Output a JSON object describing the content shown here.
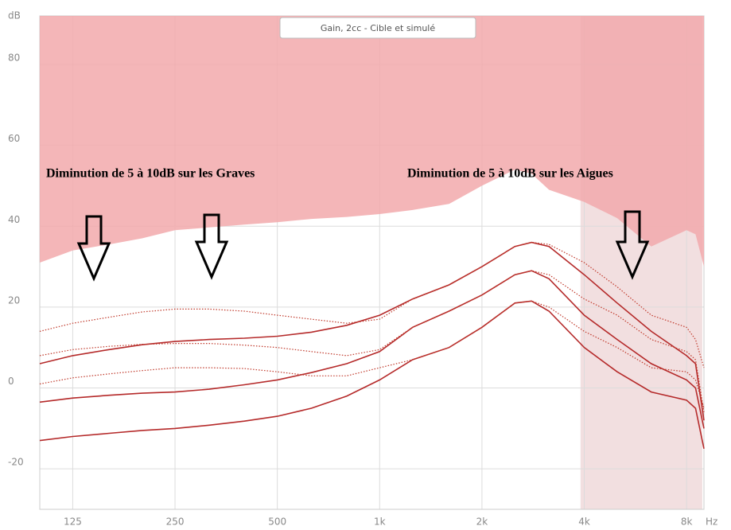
{
  "chart_data": {
    "type": "line",
    "title": "Gain, 2cc - Cible et simulé",
    "y_unit": "dB",
    "x_unit": "Hz",
    "xscale": "log",
    "xlim": [
      100,
      9000
    ],
    "ylim": [
      -30,
      92
    ],
    "xticks": [
      125,
      250,
      500,
      {
        "value": 1000,
        "label": "1k"
      },
      {
        "value": 2000,
        "label": "2k"
      },
      {
        "value": 4000,
        "label": "4k"
      },
      {
        "value": 8000,
        "label": "8k"
      }
    ],
    "yticks": [
      -20,
      0,
      20,
      40,
      60,
      80
    ],
    "grid": true,
    "highlight_xrange": [
      3900,
      8900
    ],
    "highlight_color": "#e8c4c6",
    "annotations": [
      "Diminution de 5 à 10dB sur les Graves",
      "Diminution de 5 à 10dB sur les Aigues"
    ],
    "x": [
      100,
      125,
      160,
      200,
      250,
      315,
      400,
      500,
      630,
      800,
      1000,
      1250,
      1600,
      2000,
      2500,
      2800,
      3150,
      4000,
      5000,
      6300,
      8000,
      8500,
      9000
    ],
    "series": [
      {
        "style": "area",
        "color": "#f2a9ab",
        "values": [
          31,
          34,
          35.5,
          37,
          39,
          39.7,
          40.4,
          41,
          41.8,
          42.3,
          43,
          44,
          45.5,
          50,
          54,
          53,
          49,
          46,
          42,
          35,
          39,
          38,
          30
        ]
      },
      {
        "style": "solid",
        "color": "#b52a2a",
        "values": [
          6,
          8,
          9.5,
          10.7,
          11.5,
          12,
          12.3,
          12.8,
          13.8,
          15.5,
          18,
          22,
          25.5,
          30,
          35,
          36,
          35,
          28,
          21,
          14,
          8,
          6,
          -8
        ]
      },
      {
        "style": "solid",
        "color": "#b52a2a",
        "values": [
          -3.5,
          -2.5,
          -1.8,
          -1.3,
          -1,
          -0.3,
          0.8,
          2,
          3.8,
          6,
          9,
          15,
          19,
          23,
          28,
          29,
          27,
          18,
          12,
          6,
          2,
          0,
          -10
        ]
      },
      {
        "style": "solid",
        "color": "#b52a2a",
        "values": [
          -13,
          -12,
          -11.2,
          -10.5,
          -10,
          -9.2,
          -8.2,
          -7,
          -5,
          -2,
          2,
          7,
          10,
          15,
          21,
          21.5,
          19,
          10,
          4,
          -1,
          -3,
          -5,
          -15
        ]
      },
      {
        "style": "dotted",
        "color": "#c0392b",
        "values": [
          14,
          16,
          17.5,
          18.8,
          19.5,
          19.5,
          19,
          18,
          17,
          16,
          17,
          22,
          25.5,
          30,
          35,
          36,
          35.5,
          31,
          25,
          18,
          15,
          12,
          5
        ]
      },
      {
        "style": "dotted",
        "color": "#c0392b",
        "values": [
          8,
          9.5,
          10.3,
          10.8,
          11,
          11,
          10.6,
          10,
          9,
          8,
          9.5,
          15,
          19,
          23,
          28,
          29,
          28,
          22,
          18,
          12,
          9,
          7,
          -6
        ]
      },
      {
        "style": "dotted",
        "color": "#c0392b",
        "values": [
          1,
          2.5,
          3.5,
          4.3,
          5,
          5,
          4.8,
          4,
          3,
          3,
          5,
          7,
          10,
          15,
          21,
          21.5,
          20,
          14,
          10,
          5,
          4,
          2,
          -5
        ]
      }
    ]
  }
}
